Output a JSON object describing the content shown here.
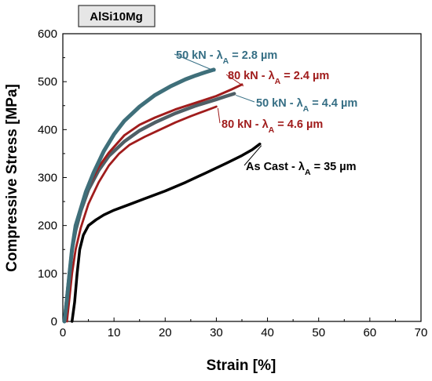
{
  "chart_data": {
    "type": "line",
    "title": "AlSi10Mg",
    "xlabel": "Strain [%]",
    "ylabel": "Compressive Stress [MPa]",
    "xlim": [
      0,
      70
    ],
    "ylim": [
      0,
      600
    ],
    "xticks": [
      "0",
      "10",
      "20",
      "30",
      "40",
      "50",
      "60",
      "70"
    ],
    "yticks": [
      "0",
      "100",
      "200",
      "300",
      "400",
      "500",
      "600"
    ],
    "grid": false,
    "legend": "none",
    "series": [
      {
        "name": "As Cast - λA = 35 µm",
        "label_main": "As Cast - λ",
        "label_sub": "A",
        "label_tail": " = 35 µm",
        "color": "#000000",
        "label_color": "#000000",
        "x": [
          1.8,
          2.3,
          2.8,
          3.3,
          4,
          5,
          6.5,
          8,
          10,
          13,
          16,
          20,
          24,
          28,
          32,
          35,
          37,
          38.5
        ],
        "y": [
          0,
          40,
          100,
          150,
          180,
          200,
          212,
          222,
          232,
          244,
          256,
          272,
          290,
          310,
          330,
          346,
          358,
          370
        ]
      },
      {
        "name": "50 kN - λA = 2.8 µm",
        "label_main": "50 kN - λ",
        "label_sub": "A",
        "label_tail": " = 2.8 µm",
        "color": "#3f6f7a",
        "label_color": "#356e84",
        "x": [
          0.3,
          0.8,
          1.3,
          1.8,
          2.5,
          3.5,
          4.5,
          6,
          8,
          10,
          12,
          15,
          18,
          21,
          24,
          26,
          28,
          29.5
        ],
        "y": [
          0,
          45,
          100,
          150,
          200,
          235,
          270,
          310,
          355,
          390,
          418,
          448,
          472,
          490,
          505,
          513,
          520,
          525
        ]
      },
      {
        "name": "80 kN - λA = 2.4 µm",
        "label_main": "80 kN - λ",
        "label_sub": "A",
        "label_tail": " = 2.4 µm",
        "color": "#a01c1c",
        "label_color": "#a01c1c",
        "x": [
          0.2,
          0.8,
          1.3,
          1.8,
          2.5,
          3.5,
          5,
          7,
          9,
          12,
          15,
          18,
          22,
          26,
          30,
          33,
          35
        ],
        "y": [
          0,
          50,
          100,
          150,
          195,
          235,
          280,
          322,
          352,
          388,
          410,
          425,
          442,
          456,
          470,
          484,
          494
        ]
      },
      {
        "name": "50 kN - λA = 4.4 µm",
        "label_main": "50 kN - λ",
        "label_sub": "A",
        "label_tail": " = 4.4 µm",
        "color": "#4f5f66",
        "label_color": "#356e84",
        "x": [
          0.3,
          0.8,
          1.3,
          1.8,
          2.5,
          3.5,
          5,
          7,
          9,
          12,
          15,
          18,
          22,
          26,
          30,
          32,
          33.5
        ],
        "y": [
          0,
          50,
          100,
          150,
          190,
          230,
          275,
          315,
          345,
          375,
          398,
          415,
          434,
          450,
          463,
          470,
          475
        ]
      },
      {
        "name": "80 kN - λA = 4.6 µm",
        "label_main": "80 kN - λ",
        "label_sub": "A",
        "label_tail": " = 4.6 µm",
        "color": "#a01c1c",
        "label_color": "#a01c1c",
        "x": [
          0.8,
          1.3,
          1.8,
          2.5,
          3.5,
          5,
          7,
          9,
          11,
          13,
          16,
          19,
          22,
          25,
          28,
          30
        ],
        "y": [
          0,
          50,
          100,
          150,
          195,
          245,
          290,
          325,
          350,
          368,
          385,
          400,
          415,
          428,
          440,
          448
        ]
      }
    ]
  }
}
